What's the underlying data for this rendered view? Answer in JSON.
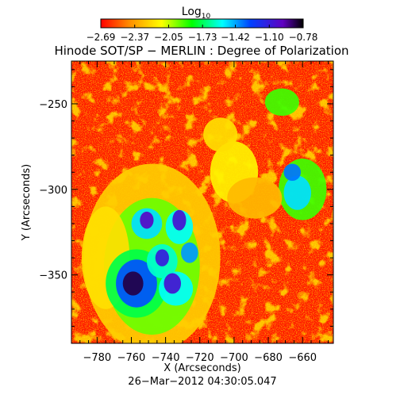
{
  "chart_data": {
    "type": "heatmap",
    "title": "Hinode SOT/SP − MERLIN : Degree of Polarization",
    "xlabel": "X (Arcseconds)",
    "ylabel": "Y (Arcseconds)",
    "footer": "26−Mar−2012 04:30:05.047",
    "xlim": [
      -795,
      -642
    ],
    "ylim": [
      -390,
      -225
    ],
    "x_ticks": [
      -780,
      -760,
      -740,
      -720,
      -700,
      -680,
      -660
    ],
    "x_tick_labels": [
      "−780",
      "−760",
      "−740",
      "−720",
      "−700",
      "−680",
      "−660"
    ],
    "y_ticks": [
      -250,
      -300,
      -350
    ],
    "y_tick_labels": [
      "−250",
      "−300",
      "−350"
    ],
    "colorbar": {
      "label_main": "Log",
      "label_sub": "10",
      "range": [
        -2.69,
        -0.78
      ],
      "ticks": [
        -2.69,
        -2.37,
        -2.05,
        -1.73,
        -1.42,
        -1.1,
        -0.78
      ],
      "tick_labels": [
        "−2.69",
        "−2.37",
        "−2.05",
        "−1.73",
        "−1.42",
        "−1.10",
        "−0.78"
      ],
      "colors": [
        "#ff0000",
        "#ff8c00",
        "#ffff00",
        "#00ff00",
        "#00ffff",
        "#0040ff",
        "#6000c0",
        "#000000"
      ]
    },
    "patches": [
      {
        "x": -759,
        "y": -355,
        "rx": 6,
        "ry": 7,
        "value": -0.85
      },
      {
        "x": -757,
        "y": -355,
        "rx": 12,
        "ry": 14,
        "value": -1.3
      },
      {
        "x": -757,
        "y": -355,
        "rx": 18,
        "ry": 20,
        "value": -1.75
      },
      {
        "x": -751,
        "y": -318,
        "rx": 4,
        "ry": 5,
        "value": -1.0
      },
      {
        "x": -751,
        "y": -320,
        "rx": 9,
        "ry": 9,
        "value": -1.5
      },
      {
        "x": -732,
        "y": -318,
        "rx": 4,
        "ry": 6,
        "value": -1.05
      },
      {
        "x": -732,
        "y": -322,
        "rx": 8,
        "ry": 10,
        "value": -1.55
      },
      {
        "x": -742,
        "y": -340,
        "rx": 4,
        "ry": 5,
        "value": -1.1
      },
      {
        "x": -742,
        "y": -342,
        "rx": 9,
        "ry": 10,
        "value": -1.6
      },
      {
        "x": -736,
        "y": -355,
        "rx": 5,
        "ry": 6,
        "value": -1.05
      },
      {
        "x": -734,
        "y": -358,
        "rx": 10,
        "ry": 10,
        "value": -1.55
      },
      {
        "x": -726,
        "y": -337,
        "rx": 5,
        "ry": 6,
        "value": -1.4
      },
      {
        "x": -748,
        "y": -345,
        "rx": 28,
        "ry": 40,
        "value": -1.95
      },
      {
        "x": -748,
        "y": -340,
        "rx": 40,
        "ry": 55,
        "value": -2.25
      },
      {
        "x": -663,
        "y": -302,
        "rx": 8,
        "ry": 10,
        "value": -1.5
      },
      {
        "x": -660,
        "y": -300,
        "rx": 14,
        "ry": 18,
        "value": -1.9
      },
      {
        "x": -666,
        "y": -290,
        "rx": 5,
        "ry": 5,
        "value": -1.35
      },
      {
        "x": -708,
        "y": -268,
        "rx": 10,
        "ry": 10,
        "value": -2.2
      },
      {
        "x": -700,
        "y": -290,
        "rx": 14,
        "ry": 18,
        "value": -2.15
      },
      {
        "x": -672,
        "y": -249,
        "rx": 10,
        "ry": 8,
        "value": -1.9
      },
      {
        "x": -688,
        "y": -305,
        "rx": 16,
        "ry": 12,
        "value": -2.3
      },
      {
        "x": -775,
        "y": -340,
        "rx": 14,
        "ry": 30,
        "value": -2.2
      }
    ]
  }
}
